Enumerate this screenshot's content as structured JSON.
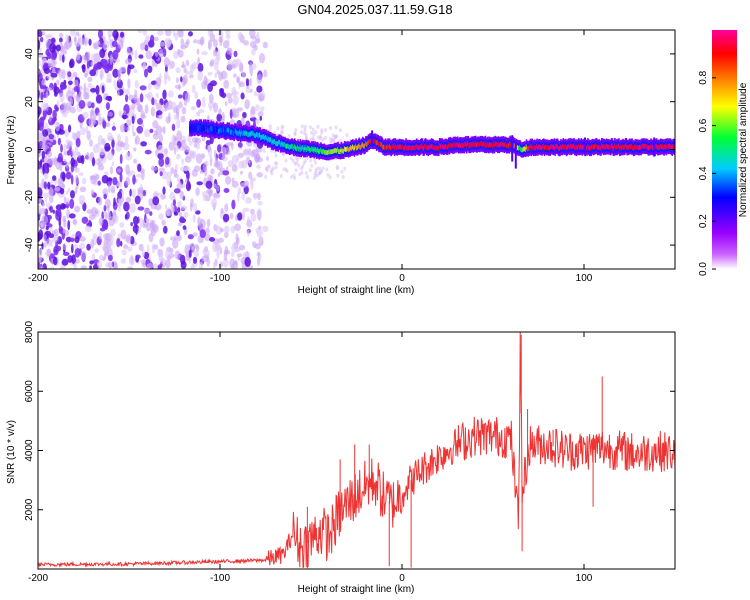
{
  "title": "GN04.2025.037.11.59.G18",
  "colors": {
    "snr_line": "#ee3333",
    "axis": "#000000"
  },
  "chart_data": [
    {
      "type": "heatmap",
      "xlabel": "Height of straight line (km)",
      "ylabel": "Frequency (Hz)",
      "xlim": [
        -200,
        150
      ],
      "ylim": [
        -50,
        50
      ],
      "x_ticks": [
        -200,
        -100,
        0,
        100
      ],
      "y_ticks": [
        -40,
        -20,
        0,
        20,
        40
      ],
      "grid": false,
      "colorbar": {
        "label": "Normalized spectral amplitude",
        "range": [
          0,
          1
        ],
        "ticks": [
          0.0,
          0.2,
          0.4,
          0.6,
          0.8
        ],
        "tick_labels": [
          "0.0",
          "0.2",
          "0.4",
          "0.6",
          "0.8"
        ],
        "colormap": [
          "#ffffff",
          "#aa00ff",
          "#0000ff",
          "#00ffff",
          "#00ff00",
          "#ffff00",
          "#ff8800",
          "#ff0000",
          "#ff0099"
        ]
      },
      "signal_track": {
        "x": [
          -117,
          -110,
          -100,
          -90,
          -80,
          -70,
          -60,
          -50,
          -40,
          -30,
          -20,
          -17,
          -10,
          0,
          10,
          20,
          30,
          40,
          50,
          60,
          65,
          70,
          80,
          90,
          100,
          110,
          120,
          130,
          140,
          150
        ],
        "y": [
          9,
          9,
          8,
          7,
          6,
          3,
          1,
          0,
          -1,
          0,
          2,
          4,
          1,
          1,
          1,
          1,
          2,
          2,
          2,
          2,
          0,
          1,
          1,
          1,
          1,
          1,
          1,
          1,
          1,
          1
        ],
        "amplitude": [
          0.3,
          0.3,
          0.35,
          0.4,
          0.45,
          0.45,
          0.5,
          0.5,
          0.6,
          0.7,
          0.8,
          0.9,
          0.85,
          0.95,
          0.95,
          0.95,
          0.95,
          0.95,
          0.95,
          0.9,
          0.5,
          0.95,
          0.95,
          0.95,
          0.95,
          0.95,
          0.95,
          0.95,
          0.95,
          0.95
        ]
      },
      "noise_region_x": [
        -200,
        -75
      ]
    },
    {
      "type": "line",
      "xlabel": "Height of straight line (km)",
      "ylabel": "SNR (10 * v/v)",
      "xlim": [
        -200,
        150
      ],
      "ylim": [
        0,
        8000
      ],
      "x_ticks": [
        -200,
        -100,
        0,
        100
      ],
      "y_ticks": [
        2000,
        4000,
        6000,
        8000
      ],
      "grid": false,
      "series": [
        {
          "color": "#ee3333",
          "x": [
            -200,
            -150,
            -100,
            -75,
            -65,
            -60,
            -55,
            -50,
            -45,
            -40,
            -35,
            -30,
            -25,
            -20,
            -15,
            -10,
            -5,
            0,
            5,
            10,
            20,
            30,
            40,
            50,
            60,
            64,
            65,
            66,
            70,
            80,
            90,
            100,
            110,
            120,
            130,
            140,
            150
          ],
          "y": [
            150,
            170,
            250,
            300,
            500,
            1200,
            700,
            1000,
            1300,
            1100,
            1800,
            2200,
            2500,
            2800,
            3000,
            2400,
            2200,
            2600,
            3000,
            3300,
            3800,
            4200,
            4500,
            4500,
            4400,
            1500,
            8000,
            2500,
            4200,
            4200,
            4000,
            4000,
            4100,
            4000,
            3900,
            4000,
            3900
          ]
        }
      ]
    }
  ]
}
